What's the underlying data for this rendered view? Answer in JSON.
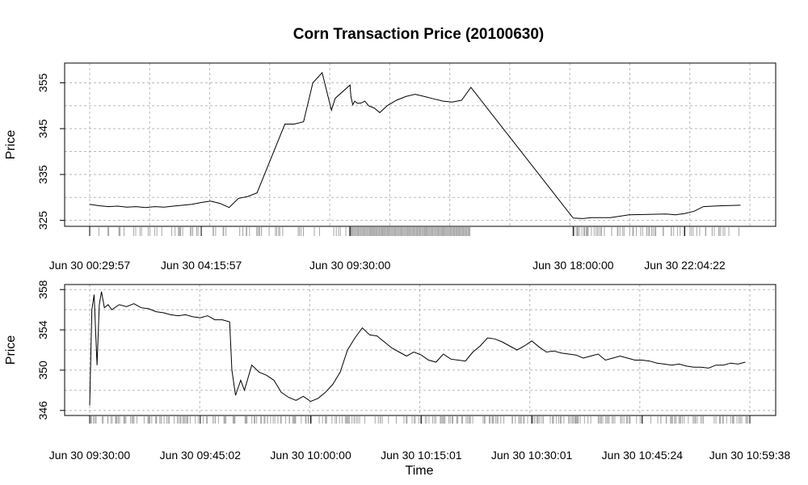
{
  "chart_data": [
    {
      "type": "line",
      "panel": "top",
      "title": "Corn Transaction Price (20100630)",
      "xlabel": "",
      "ylabel": "Price",
      "ylim": [
        323.7,
        359.3
      ],
      "yticks": [
        325,
        335,
        345,
        355
      ],
      "grid": true,
      "x_tick_labels": [
        "Jun 30 00:29:57",
        "Jun 30 04:15:57",
        "Jun 30 09:30:00",
        "Jun 30 18:00:00",
        "Jun 30 22:04:22"
      ],
      "x_tick_positions": [
        0,
        6,
        14,
        26,
        32
      ],
      "x_range": [
        0,
        35.5
      ],
      "series": [
        {
          "values_x": [
            0,
            0.5,
            1,
            1.5,
            2,
            2.5,
            3,
            3.5,
            4,
            4.5,
            5,
            5.5,
            6,
            6.5,
            7,
            7.5,
            8,
            8.5,
            9,
            9.5,
            10,
            10.5,
            11,
            11.5,
            12,
            12.5,
            13,
            13.2,
            14,
            14.05,
            14.15,
            14.25,
            14.4,
            14.6,
            14.8,
            15,
            15.3,
            15.6,
            16,
            16.5,
            17,
            17.5,
            18,
            18.5,
            19,
            19.5,
            20,
            20.5,
            26,
            26.5,
            27,
            28,
            29,
            30,
            31,
            31.5,
            32,
            32.5,
            33,
            34,
            35
          ],
          "values_y": [
            328.5,
            328.2,
            328,
            328.1,
            327.9,
            328,
            327.8,
            328,
            327.9,
            328.1,
            328.3,
            328.5,
            328.9,
            329.2,
            328.7,
            327.8,
            329.8,
            330.2,
            331,
            336,
            341,
            346,
            346,
            346.5,
            355,
            357.2,
            349,
            351.6,
            354.5,
            352,
            350.2,
            351,
            350.5,
            350.6,
            351,
            350,
            349.5,
            348.5,
            350,
            351.2,
            352,
            352.5,
            352,
            351.5,
            351,
            350.8,
            351.2,
            354,
            325.5,
            325.4,
            325.6,
            325.6,
            326.2,
            326.3,
            326.4,
            326.2,
            326.5,
            327,
            328,
            328.2,
            328.3
          ]
        }
      ]
    },
    {
      "type": "line",
      "panel": "bottom",
      "title": "",
      "xlabel": "Time",
      "ylabel": "Price",
      "ylim": [
        345.5,
        358.5
      ],
      "yticks": [
        346,
        350,
        354,
        358
      ],
      "grid": true,
      "x_tick_labels": [
        "Jun 30 09:30:00",
        "Jun 30 09:45:02",
        "Jun 30 10:00:00",
        "Jun 30 10:15:01",
        "Jun 30 10:30:01",
        "Jun 30 10:45:24",
        "Jun 30 10:59:38"
      ],
      "x_tick_positions": [
        0,
        15,
        30,
        45,
        60,
        75,
        89.6
      ],
      "x_range": [
        0,
        89.6
      ],
      "series": [
        {
          "values_x": [
            0,
            0.3,
            0.6,
            1,
            1.3,
            1.6,
            2,
            2.5,
            3,
            4,
            5,
            6,
            7,
            8,
            9,
            10,
            11,
            12,
            13,
            14,
            15,
            16,
            17,
            18,
            19,
            19.3,
            19.8,
            20.5,
            21,
            22,
            23,
            24,
            25,
            26,
            27,
            28,
            29,
            30,
            31,
            32,
            33,
            34,
            35,
            36,
            37,
            38,
            39,
            40,
            41,
            42,
            43,
            44,
            45,
            46,
            47,
            48,
            49,
            50,
            51,
            52,
            53,
            54,
            55,
            56,
            57,
            58,
            59,
            60,
            61,
            62,
            63,
            64,
            65,
            66,
            67,
            68,
            69,
            70,
            71,
            72,
            73,
            74,
            75,
            76,
            77,
            78,
            79,
            80,
            81,
            82,
            83,
            84,
            85,
            86,
            87,
            88,
            89
          ],
          "values_y": [
            346.5,
            356,
            357.5,
            350.5,
            356.5,
            357.8,
            356.2,
            356.5,
            356,
            356.5,
            356.3,
            356.6,
            356.2,
            356.1,
            355.8,
            355.7,
            355.5,
            355.4,
            355.5,
            355.3,
            355.2,
            355.4,
            355.0,
            355.0,
            354.8,
            350,
            347.5,
            349,
            348,
            350.5,
            349.8,
            349.5,
            349.0,
            347.8,
            347.3,
            347.0,
            347.4,
            346.9,
            347.2,
            347.8,
            348.6,
            349.8,
            352.0,
            353.2,
            354.2,
            353.5,
            353.4,
            352.8,
            352.2,
            351.8,
            351.4,
            351.8,
            351.5,
            351.0,
            350.8,
            351.6,
            351.1,
            351.0,
            350.9,
            351.8,
            352.4,
            353.2,
            353.1,
            352.8,
            352.4,
            352.0,
            352.4,
            352.9,
            352.3,
            351.8,
            351.9,
            351.7,
            351.6,
            351.5,
            351.2,
            351.4,
            351.6,
            351.0,
            351.2,
            351.4,
            351.2,
            351.0,
            351.0,
            350.9,
            350.7,
            350.6,
            350.5,
            350.6,
            350.4,
            350.3,
            350.3,
            350.2,
            350.5,
            350.5,
            350.7,
            350.6,
            350.8
          ]
        }
      ]
    }
  ]
}
